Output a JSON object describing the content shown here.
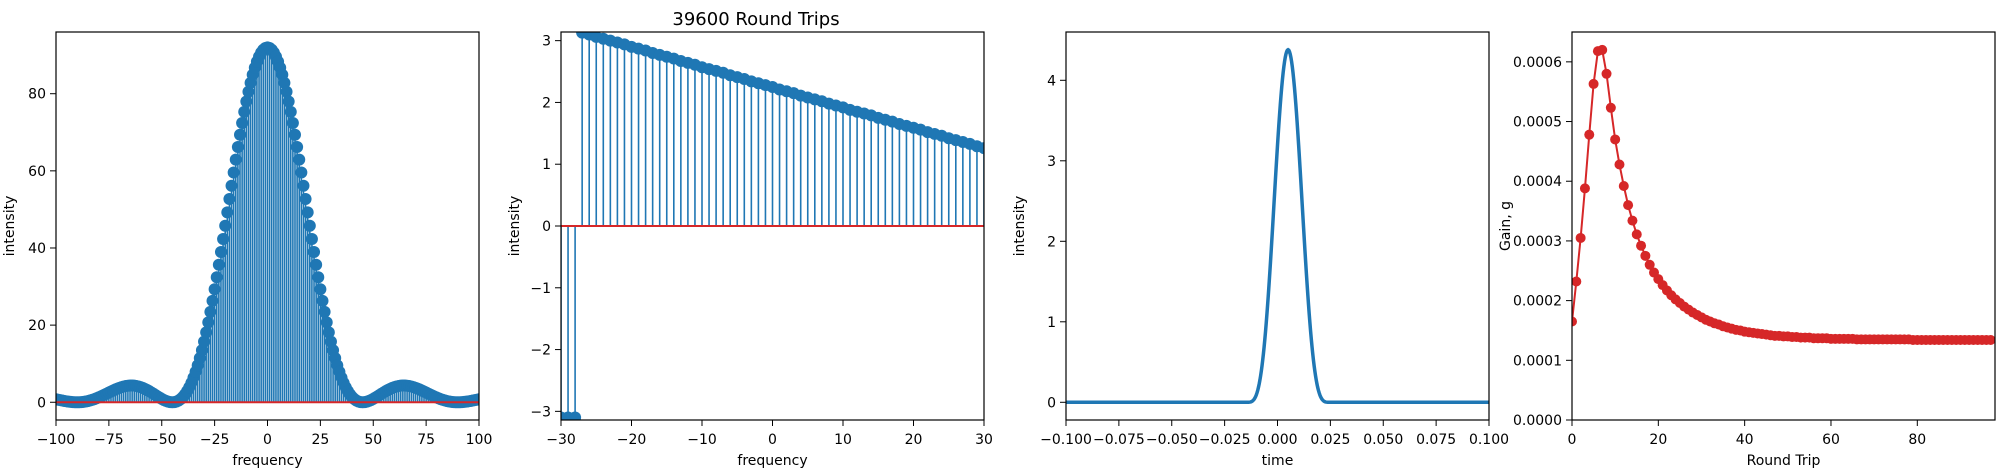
{
  "figure": {
    "title": "39600 Round Trips"
  },
  "chart_data": [
    {
      "type": "stem",
      "id": "spectrum-intensity",
      "xlabel": "frequency",
      "ylabel": "intensity",
      "xlim": [
        -100,
        100
      ],
      "ylim": [
        -4.6,
        96
      ],
      "xticks": [
        -100,
        -75,
        -50,
        -25,
        0,
        25,
        50,
        75,
        100
      ],
      "yticks": [
        0,
        20,
        40,
        60,
        80
      ],
      "envelope": "sinc_squared",
      "peak_value": 92,
      "first_zero": 45,
      "sample_step": 1,
      "color": "#1f77b4",
      "baseline_color": "#d62728"
    },
    {
      "type": "stem",
      "id": "spectral-phase",
      "xlabel": "frequency",
      "ylabel": "intensity",
      "xlim": [
        -30,
        30
      ],
      "ylim": [
        -3.14,
        3.14
      ],
      "xticks": [
        -30,
        -20,
        -10,
        0,
        10,
        20,
        30
      ],
      "yticks": [
        -3,
        -2,
        -1,
        0,
        1,
        2,
        3
      ],
      "points": [
        {
          "x": -30,
          "y": -3.1
        },
        {
          "x": -29,
          "y": -3.1
        },
        {
          "x": -28,
          "y": -3.1
        },
        {
          "x": -27,
          "y": 3.13
        },
        {
          "x": -26,
          "y": 3.1
        },
        {
          "x": -25,
          "y": 3.06
        },
        {
          "x": -24,
          "y": 3.03
        },
        {
          "x": -23,
          "y": 3.0
        },
        {
          "x": -22,
          "y": 2.97
        },
        {
          "x": -21,
          "y": 2.94
        },
        {
          "x": -20,
          "y": 2.9
        },
        {
          "x": -19,
          "y": 2.87
        },
        {
          "x": -18,
          "y": 2.84
        },
        {
          "x": -17,
          "y": 2.8
        },
        {
          "x": -16,
          "y": 2.77
        },
        {
          "x": -15,
          "y": 2.74
        },
        {
          "x": -14,
          "y": 2.71
        },
        {
          "x": -13,
          "y": 2.67
        },
        {
          "x": -12,
          "y": 2.64
        },
        {
          "x": -11,
          "y": 2.61
        },
        {
          "x": -10,
          "y": 2.57
        },
        {
          "x": -9,
          "y": 2.54
        },
        {
          "x": -8,
          "y": 2.51
        },
        {
          "x": -7,
          "y": 2.48
        },
        {
          "x": -6,
          "y": 2.44
        },
        {
          "x": -5,
          "y": 2.41
        },
        {
          "x": -4,
          "y": 2.38
        },
        {
          "x": -3,
          "y": 2.34
        },
        {
          "x": -2,
          "y": 2.31
        },
        {
          "x": -1,
          "y": 2.28
        },
        {
          "x": 0,
          "y": 2.25
        },
        {
          "x": 1,
          "y": 2.21
        },
        {
          "x": 2,
          "y": 2.18
        },
        {
          "x": 3,
          "y": 2.15
        },
        {
          "x": 4,
          "y": 2.11
        },
        {
          "x": 5,
          "y": 2.08
        },
        {
          "x": 6,
          "y": 2.05
        },
        {
          "x": 7,
          "y": 2.02
        },
        {
          "x": 8,
          "y": 1.98
        },
        {
          "x": 9,
          "y": 1.95
        },
        {
          "x": 10,
          "y": 1.92
        },
        {
          "x": 11,
          "y": 1.88
        },
        {
          "x": 12,
          "y": 1.85
        },
        {
          "x": 13,
          "y": 1.82
        },
        {
          "x": 14,
          "y": 1.79
        },
        {
          "x": 15,
          "y": 1.75
        },
        {
          "x": 16,
          "y": 1.72
        },
        {
          "x": 17,
          "y": 1.69
        },
        {
          "x": 18,
          "y": 1.65
        },
        {
          "x": 19,
          "y": 1.62
        },
        {
          "x": 20,
          "y": 1.59
        },
        {
          "x": 21,
          "y": 1.56
        },
        {
          "x": 22,
          "y": 1.52
        },
        {
          "x": 23,
          "y": 1.49
        },
        {
          "x": 24,
          "y": 1.46
        },
        {
          "x": 25,
          "y": 1.42
        },
        {
          "x": 26,
          "y": 1.39
        },
        {
          "x": 27,
          "y": 1.36
        },
        {
          "x": 28,
          "y": 1.33
        },
        {
          "x": 29,
          "y": 1.29
        },
        {
          "x": 30,
          "y": 1.26
        }
      ],
      "color": "#1f77b4",
      "baseline_color": "#d62728"
    },
    {
      "type": "line",
      "id": "pulse-intensity",
      "xlabel": "time",
      "ylabel": "intensity",
      "xlim": [
        -0.1,
        0.1
      ],
      "ylim": [
        -0.22,
        4.6
      ],
      "xticks": [
        -0.1,
        -0.075,
        -0.05,
        -0.025,
        0.0,
        0.025,
        0.05,
        0.075,
        0.1
      ],
      "xtick_labels": [
        "−0.100",
        "−0.075",
        "−0.050",
        "−0.025",
        "0.000",
        "0.025",
        "0.050",
        "0.075",
        "0.100"
      ],
      "yticks": [
        0,
        1,
        2,
        3,
        4
      ],
      "pulse": {
        "center": 0.005,
        "peak": 4.38,
        "half_width": 0.02
      },
      "color": "#1f77b4"
    },
    {
      "type": "line",
      "id": "gain-vs-round-trip",
      "xlabel": "Round Trip",
      "ylabel": "Gain, g",
      "xlim": [
        0,
        98
      ],
      "ylim": [
        0,
        0.00065
      ],
      "xticks": [
        0,
        20,
        40,
        60,
        80
      ],
      "yticks": [
        0,
        0.0001,
        0.0002,
        0.0003,
        0.0004,
        0.0005,
        0.0006
      ],
      "ytick_labels": [
        "0.0000",
        "0.0001",
        "0.0002",
        "0.0003",
        "0.0004",
        "0.0005",
        "0.0006"
      ],
      "x": [
        0,
        1,
        2,
        3,
        4,
        5,
        6,
        7,
        8,
        9,
        10,
        11,
        12,
        13,
        14,
        15,
        16,
        17,
        18,
        19,
        20,
        21,
        22,
        23,
        24,
        25,
        26,
        27,
        28,
        29,
        30,
        31,
        32,
        33,
        34,
        35,
        36,
        37,
        38,
        39,
        40,
        41,
        42,
        43,
        44,
        45,
        46,
        47,
        48,
        49,
        50,
        51,
        52,
        53,
        54,
        55,
        56,
        57,
        58,
        59,
        60,
        61,
        62,
        63,
        64,
        65,
        66,
        67,
        68,
        69,
        70,
        71,
        72,
        73,
        74,
        75,
        76,
        77,
        78,
        79,
        80,
        81,
        82,
        83,
        84,
        85,
        86,
        87,
        88,
        89,
        90,
        91,
        92,
        93,
        94,
        95,
        96,
        97
      ],
      "y": [
        0.000165,
        0.000232,
        0.000305,
        0.000388,
        0.000478,
        0.000563,
        0.000618,
        0.00062,
        0.00058,
        0.000523,
        0.00047,
        0.000428,
        0.000392,
        0.00036,
        0.000334,
        0.000311,
        0.000292,
        0.000275,
        0.00026,
        0.000247,
        0.000236,
        0.000226,
        0.000217,
        0.000209,
        0.000202,
        0.000196,
        0.00019,
        0.000185,
        0.00018,
        0.000176,
        0.000172,
        0.000168,
        0.000165,
        0.000162,
        0.00016,
        0.000157,
        0.000155,
        0.000153,
        0.000151,
        0.00015,
        0.000148,
        0.000147,
        0.000146,
        0.000145,
        0.000144,
        0.000143,
        0.000142,
        0.000141,
        0.000141,
        0.00014,
        0.00014,
        0.000139,
        0.000139,
        0.000138,
        0.000138,
        0.000138,
        0.000137,
        0.000137,
        0.000137,
        0.000137,
        0.000136,
        0.000136,
        0.000136,
        0.000136,
        0.000136,
        0.000136,
        0.000135,
        0.000135,
        0.000135,
        0.000135,
        0.000135,
        0.000135,
        0.000135,
        0.000135,
        0.000135,
        0.000135,
        0.000135,
        0.000135,
        0.000135,
        0.000134,
        0.000134,
        0.000134,
        0.000134,
        0.000134,
        0.000134,
        0.000134,
        0.000134,
        0.000134,
        0.000134,
        0.000134,
        0.000134,
        0.000134,
        0.000134,
        0.000134,
        0.000134,
        0.000134,
        0.000134,
        0.000134
      ],
      "color": "#d62728"
    }
  ]
}
